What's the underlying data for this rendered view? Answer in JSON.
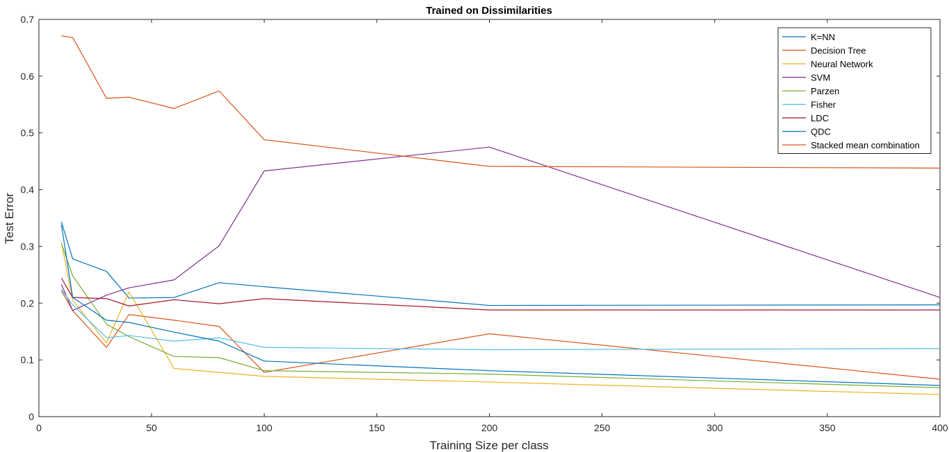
{
  "chart_data": {
    "type": "line",
    "title": "Trained on Dissimilarities",
    "xlabel": "Training Size per class",
    "ylabel": "Test Error",
    "xlim": [
      0,
      400
    ],
    "ylim": [
      0,
      0.7
    ],
    "xticks": [
      0,
      50,
      100,
      150,
      200,
      250,
      300,
      350,
      400
    ],
    "yticks": [
      0,
      0.1,
      0.2,
      0.3,
      0.4,
      0.5,
      0.6,
      0.7
    ],
    "grid": false,
    "legend_position": "top-right",
    "x": [
      10,
      15,
      30,
      40,
      60,
      80,
      100,
      200,
      400
    ],
    "series": [
      {
        "name": "K=NN",
        "color": "#0072BD",
        "values": [
          0.343,
          0.278,
          0.256,
          0.209,
          0.21,
          0.236,
          0.229,
          0.196,
          0.197
        ]
      },
      {
        "name": "Decision Tree",
        "color": "#D95319",
        "values": [
          0.222,
          0.187,
          0.122,
          0.18,
          0.17,
          0.159,
          0.078,
          0.146,
          0.066
        ]
      },
      {
        "name": "Neural Network",
        "color": "#EDB120",
        "values": [
          0.307,
          0.205,
          0.13,
          0.22,
          0.085,
          0.078,
          0.071,
          0.061,
          0.039
        ]
      },
      {
        "name": "SVM",
        "color": "#7E2F8E",
        "values": [
          0.233,
          0.187,
          0.214,
          0.227,
          0.241,
          0.301,
          0.433,
          0.475,
          0.21
        ]
      },
      {
        "name": "Parzen",
        "color": "#77AC30",
        "values": [
          0.305,
          0.248,
          0.163,
          0.141,
          0.106,
          0.104,
          0.081,
          0.075,
          0.051
        ]
      },
      {
        "name": "Fisher",
        "color": "#4DBEEE",
        "values": [
          0.224,
          0.197,
          0.139,
          0.143,
          0.133,
          0.139,
          0.122,
          0.118,
          0.12
        ]
      },
      {
        "name": "LDC",
        "color": "#A2142F",
        "values": [
          0.244,
          0.21,
          0.208,
          0.195,
          0.206,
          0.199,
          0.208,
          0.188,
          0.188
        ]
      },
      {
        "name": "QDC",
        "color": "#0072BD",
        "values": [
          0.338,
          0.21,
          0.17,
          0.166,
          0.149,
          0.133,
          0.098,
          0.081,
          0.055
        ]
      },
      {
        "name": "Stacked mean combination",
        "color": "#D95319",
        "values": [
          0.671,
          0.668,
          0.561,
          0.563,
          0.543,
          0.574,
          0.488,
          0.441,
          0.438
        ]
      }
    ]
  }
}
